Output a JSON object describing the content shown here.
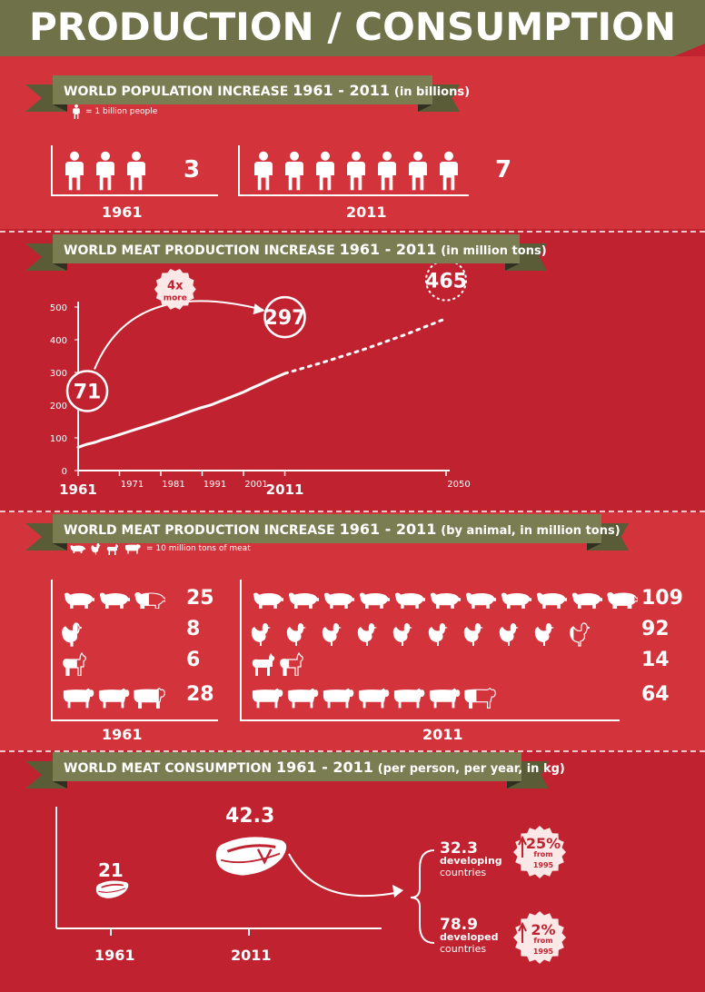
{
  "title": "PRODUCTION / CONSUMPTION",
  "colors": {
    "background": "#c0222f",
    "ribbon": "#7a7c52",
    "banner": "#6f7148",
    "light": "#ffffff"
  },
  "population": {
    "heading": "WORLD POPULATION INCREASE",
    "years": "1961 - 2011",
    "unit": "(in billions)",
    "legend": "= 1 billion people",
    "legend_icon": "person-icon",
    "groups": [
      {
        "year": "1961",
        "value": "3",
        "count": 3
      },
      {
        "year": "2011",
        "value": "7",
        "count": 7
      }
    ]
  },
  "production": {
    "heading": "WORLD MEAT PRODUCTION INCREASE",
    "years": "1961 - 2011",
    "unit": "(in million tons)",
    "multiplier": "4x",
    "multiplier_word": "more"
  },
  "chart_data": {
    "type": "line",
    "title": "WORLD MEAT PRODUCTION INCREASE 1961 - 2011",
    "ylabel": "",
    "xlabel": "",
    "ylim": [
      0,
      500
    ],
    "xlim": [
      1961,
      2050
    ],
    "y_ticks": [
      "0",
      "100",
      "200",
      "300",
      "400",
      "500"
    ],
    "x_ticks": [
      {
        "year": 1961,
        "label": "1961"
      },
      {
        "year": 1971,
        "label": "1971"
      },
      {
        "year": 1981,
        "label": "1981"
      },
      {
        "year": 1991,
        "label": "1991"
      },
      {
        "year": 2001,
        "label": "2001"
      },
      {
        "year": 2011,
        "label": "2011"
      },
      {
        "year": 2050,
        "label": "2050"
      }
    ],
    "series": [
      {
        "values": [
          [
            1961,
            71
          ],
          [
            1963,
            80
          ],
          [
            1965,
            86
          ],
          [
            1967,
            95
          ],
          [
            1969,
            102
          ],
          [
            1971,
            110
          ],
          [
            1973,
            118
          ],
          [
            1975,
            126
          ],
          [
            1977,
            134
          ],
          [
            1979,
            142
          ],
          [
            1981,
            150
          ],
          [
            1983,
            158
          ],
          [
            1985,
            167
          ],
          [
            1987,
            176
          ],
          [
            1989,
            185
          ],
          [
            1991,
            193
          ],
          [
            1993,
            200
          ],
          [
            1995,
            210
          ],
          [
            1997,
            220
          ],
          [
            1999,
            230
          ],
          [
            2001,
            240
          ],
          [
            2003,
            252
          ],
          [
            2005,
            263
          ],
          [
            2007,
            275
          ],
          [
            2009,
            286
          ],
          [
            2011,
            297
          ]
        ]
      },
      {
        "style": "dashed",
        "values": [
          [
            2011,
            297
          ],
          [
            2020,
            330
          ],
          [
            2030,
            370
          ],
          [
            2040,
            415
          ],
          [
            2050,
            465
          ]
        ]
      }
    ],
    "callouts": [
      {
        "year": 1961,
        "value": 71,
        "label": "71"
      },
      {
        "year": 2011,
        "value": 297,
        "label": "297"
      },
      {
        "year": 2050,
        "value": 465,
        "label": "465"
      }
    ]
  },
  "animals": {
    "heading": "WORLD MEAT PRODUCTION INCREASE",
    "years": "1961 - 2011",
    "unit": "(by animal, in million tons)",
    "legend": "= 10 million tons of meat",
    "legend_icons": [
      "pig-icon",
      "chicken-icon",
      "goat-icon",
      "cow-icon"
    ],
    "year_1961": "1961",
    "year_2011": "2011",
    "rows": [
      {
        "animal": "pig",
        "v1961": "25",
        "n1961": 2.5,
        "v2011": "109",
        "n2011": 10.9
      },
      {
        "animal": "chicken",
        "v1961": "8",
        "n1961": 0.8,
        "v2011": "92",
        "n2011": 9.2
      },
      {
        "animal": "goat",
        "v1961": "6",
        "n1961": 0.6,
        "v2011": "14",
        "n2011": 1.4
      },
      {
        "animal": "cow",
        "v1961": "28",
        "n1961": 2.8,
        "v2011": "64",
        "n2011": 6.4
      }
    ]
  },
  "consumption": {
    "heading": "WORLD MEAT CONSUMPTION",
    "years": "1961 - 2011",
    "unit": "(per person, per year, in kg)",
    "y1961": "1961",
    "y2011": "2011",
    "v1961": "21",
    "v2011": "42.3",
    "developing": {
      "value": "32.3",
      "label1": "developing",
      "label2": "countries",
      "badge": "25%",
      "badge_sub": "from 1995"
    },
    "developed": {
      "value": "78.9",
      "label1": "developed",
      "label2": "countries",
      "badge": "2%",
      "badge_sub": "from 1995"
    }
  }
}
